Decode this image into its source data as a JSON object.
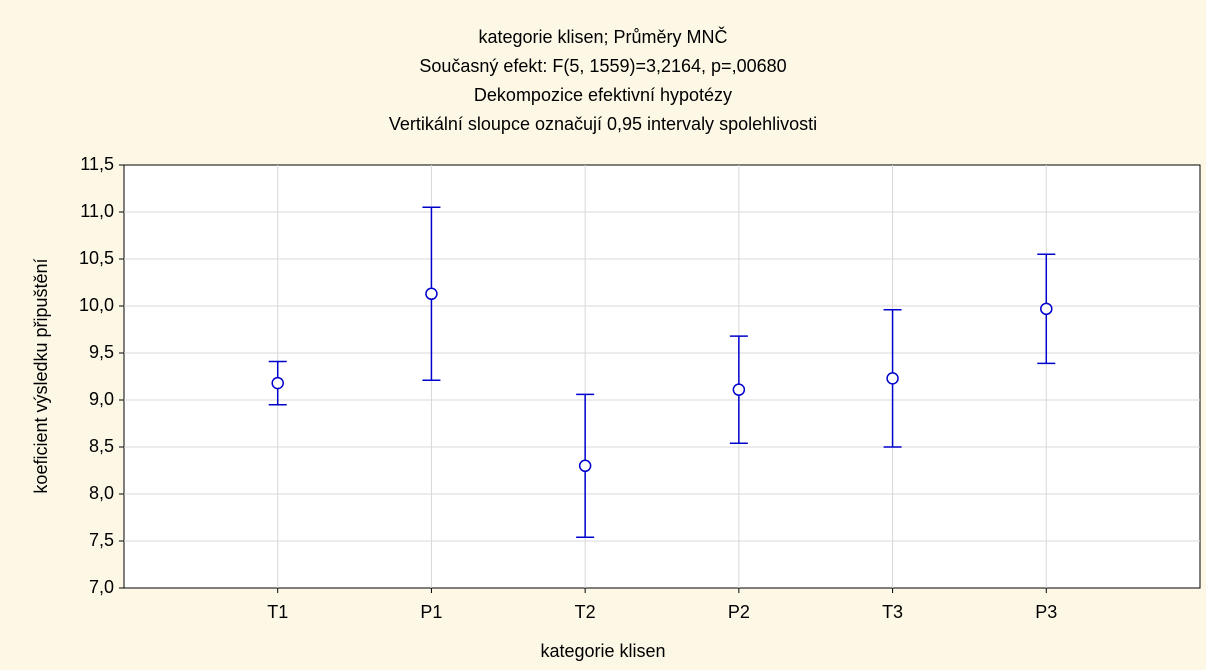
{
  "chart_data": {
    "type": "errorbar",
    "title": [
      "kategorie klisen; Průměry MNČ",
      "Současný efekt: F(5, 1559)=3,2164, p=,00680",
      "Dekompozice efektivní hypotézy",
      "Vertikální sloupce označují 0,95 intervaly spolehlivosti"
    ],
    "xlabel": "kategorie klisen",
    "ylabel": "koeficient výsledku připuštění",
    "categories": [
      "T1",
      "P1",
      "T2",
      "P2",
      "T3",
      "P3"
    ],
    "values": [
      9.18,
      10.13,
      8.3,
      9.11,
      9.23,
      9.97
    ],
    "errors": [
      0.23,
      0.92,
      0.76,
      0.57,
      0.73,
      0.58
    ],
    "color": "#0000cc",
    "ylim": [
      7,
      11.5
    ],
    "yticks": [
      {
        "value": 7,
        "label": "7,0"
      },
      {
        "value": 7.5,
        "label": "7,5"
      },
      {
        "value": 8,
        "label": "8,0"
      },
      {
        "value": 8.5,
        "label": "8,5"
      },
      {
        "value": 9,
        "label": "9,0"
      },
      {
        "value": 9.5,
        "label": "9,5"
      },
      {
        "value": 10,
        "label": "10,0"
      },
      {
        "value": 10.5,
        "label": "10,5"
      },
      {
        "value": 11,
        "label": "11,0"
      },
      {
        "value": 11.5,
        "label": "11,5"
      }
    ],
    "grid": true
  }
}
